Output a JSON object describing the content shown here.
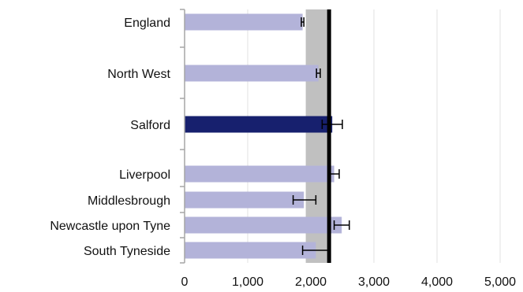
{
  "chart_data": {
    "type": "bar",
    "orientation": "horizontal",
    "title": "",
    "xlabel": "",
    "ylabel": "",
    "xlim": [
      0,
      5000
    ],
    "xticks": [
      0,
      1000,
      2000,
      3000,
      4000,
      5000
    ],
    "xtick_labels": [
      "0",
      "1,000",
      "2,000",
      "3,000",
      "4,000",
      "5,000"
    ],
    "grid": "vertical",
    "legend": "none",
    "categories": [
      "England",
      "North West",
      "Salford",
      "Liverpool",
      "Middlesbrough",
      "Newcastle upon Tyne",
      "South Tyneside"
    ],
    "values": [
      1870,
      2120,
      2340,
      2370,
      1890,
      2490,
      2080
    ],
    "error_low": [
      1850,
      2090,
      2180,
      2300,
      1720,
      2370,
      1870
    ],
    "error_high": [
      1890,
      2150,
      2500,
      2450,
      2080,
      2610,
      2290
    ],
    "highlight_category": "Salford",
    "reference_line": 2290,
    "reference_band": [
      1920,
      2290
    ],
    "colors": {
      "bar": "#b3b3d9",
      "highlight_bar": "#17206e",
      "band": "#c0c0c0",
      "reference_line": "#000000",
      "error_bar": "#000000",
      "grid": "#e0e0e0",
      "axis": "#a6a6a6"
    }
  }
}
